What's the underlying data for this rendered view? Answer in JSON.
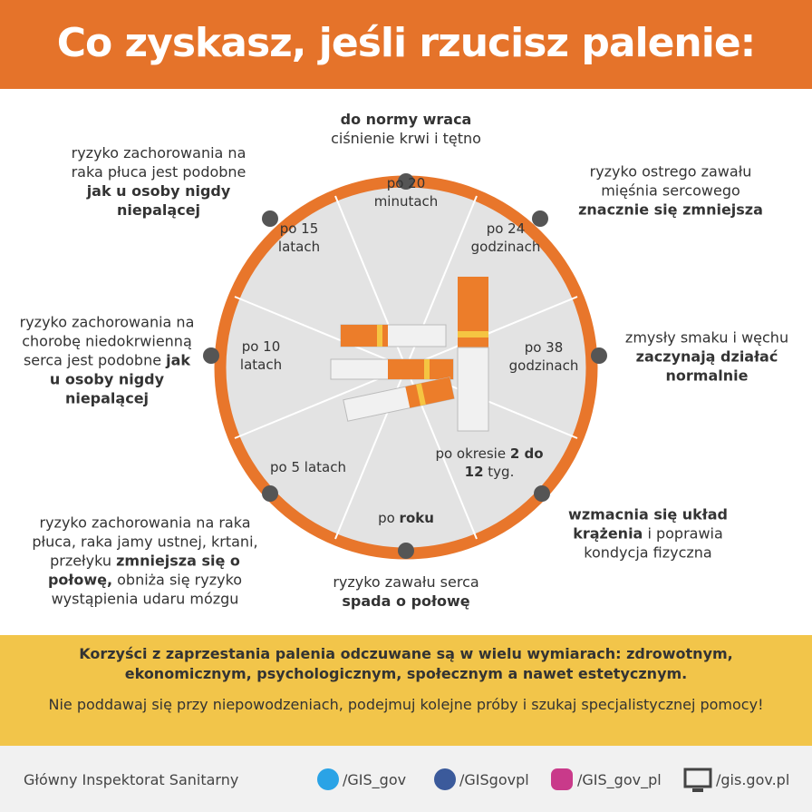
{
  "header": {
    "title": "Co zyskasz, jeśli rzucisz palenie:"
  },
  "timeline": [
    {
      "time": [
        {
          "text": "po 20 minutach",
          "bold": false
        }
      ],
      "benefit": [
        {
          "text": "do normy wraca",
          "bold": true
        },
        {
          "text": " ciśnienie krwi i tętno",
          "bold": false
        }
      ]
    },
    {
      "time": [
        {
          "text": "po 24 godzinach",
          "bold": false
        }
      ],
      "benefit": [
        {
          "text": "ryzyko ostrego zawału mięśnia sercowego ",
          "bold": false
        },
        {
          "text": "znacznie się zmniejsza",
          "bold": true
        }
      ]
    },
    {
      "time": [
        {
          "text": "po 38 godzinach",
          "bold": false
        }
      ],
      "benefit": [
        {
          "text": "zmysły smaku i węchu ",
          "bold": false
        },
        {
          "text": "zaczynają działać normalnie",
          "bold": true
        }
      ]
    },
    {
      "time": [
        {
          "text": "po okresie ",
          "bold": false
        },
        {
          "text": "2 do 12",
          "bold": true
        },
        {
          "text": " tyg.",
          "bold": false
        }
      ],
      "benefit": [
        {
          "text": "wzmacnia się układ krążenia",
          "bold": true
        },
        {
          "text": " i poprawia kondycja fizyczna",
          "bold": false
        }
      ]
    },
    {
      "time": [
        {
          "text": "po ",
          "bold": false
        },
        {
          "text": "roku",
          "bold": true
        }
      ],
      "benefit": [
        {
          "text": "ryzyko zawału serca ",
          "bold": false
        },
        {
          "text": "spada o połowę",
          "bold": true
        }
      ]
    },
    {
      "time": [
        {
          "text": "po 5 latach",
          "bold": false
        }
      ],
      "benefit": [
        {
          "text": "ryzyko zachorowania na raka płuca, raka jamy ustnej, krtani, przełyku ",
          "bold": false
        },
        {
          "text": "zmniejsza się o połowę,",
          "bold": true
        },
        {
          "text": " obniża się ryzyko wystąpienia udaru mózgu",
          "bold": false
        }
      ]
    },
    {
      "time": [
        {
          "text": "po 10 latach",
          "bold": false
        }
      ],
      "benefit": [
        {
          "text": "ryzyko zachorowania na chorobę niedokrwienną serca jest podobne ",
          "bold": false
        },
        {
          "text": "jak u osoby nigdy niepalącej",
          "bold": true
        }
      ]
    },
    {
      "time": [
        {
          "text": "po 15 latach",
          "bold": false
        }
      ],
      "benefit": [
        {
          "text": "ryzyko zachorowania na raka płuca jest podobne ",
          "bold": false
        },
        {
          "text": "jak u osoby nigdy niepalącej",
          "bold": true
        }
      ]
    }
  ],
  "banner": {
    "summary": "Korzyści z zaprzestania palenia odczuwane są w wielu wymiarach: zdrowotnym, ekonomicznym, psychologicznym, społecznym a nawet estetycznym.",
    "advice": "Nie poddawaj się przy niepowodzeniach, podejmuj kolejne próby i szukaj specjalistycznej pomocy!"
  },
  "footer": {
    "organization": "Główny Inspektorat Sanitarny",
    "links": [
      "/GIS_gov",
      "/GISgovpl",
      "/GIS_gov_pl",
      "/gis.gov.pl"
    ]
  }
}
